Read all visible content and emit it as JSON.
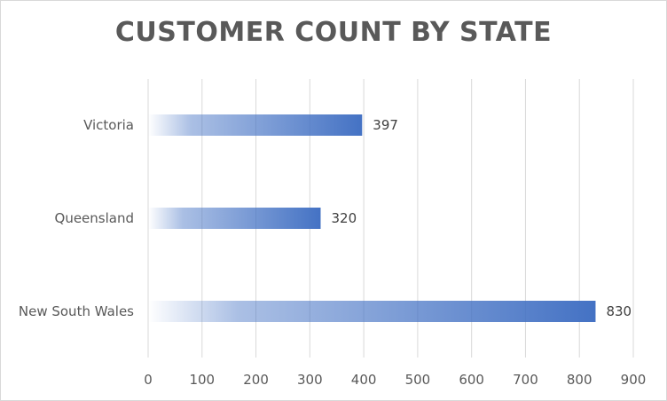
{
  "chart_data": {
    "type": "bar",
    "orientation": "horizontal",
    "title": "CUSTOMER COUNT BY STATE",
    "categories": [
      "Victoria",
      "Queensland",
      "New South Wales"
    ],
    "values": [
      397,
      320,
      830
    ],
    "xlim": [
      0,
      900
    ],
    "xticks": [
      0,
      100,
      200,
      300,
      400,
      500,
      600,
      700,
      800,
      900
    ],
    "xlabel": "",
    "ylabel": "",
    "grid": "vertical",
    "legend": "none",
    "data_labels": true,
    "bar_color": "#4472C4",
    "bar_fill": "gradient"
  }
}
